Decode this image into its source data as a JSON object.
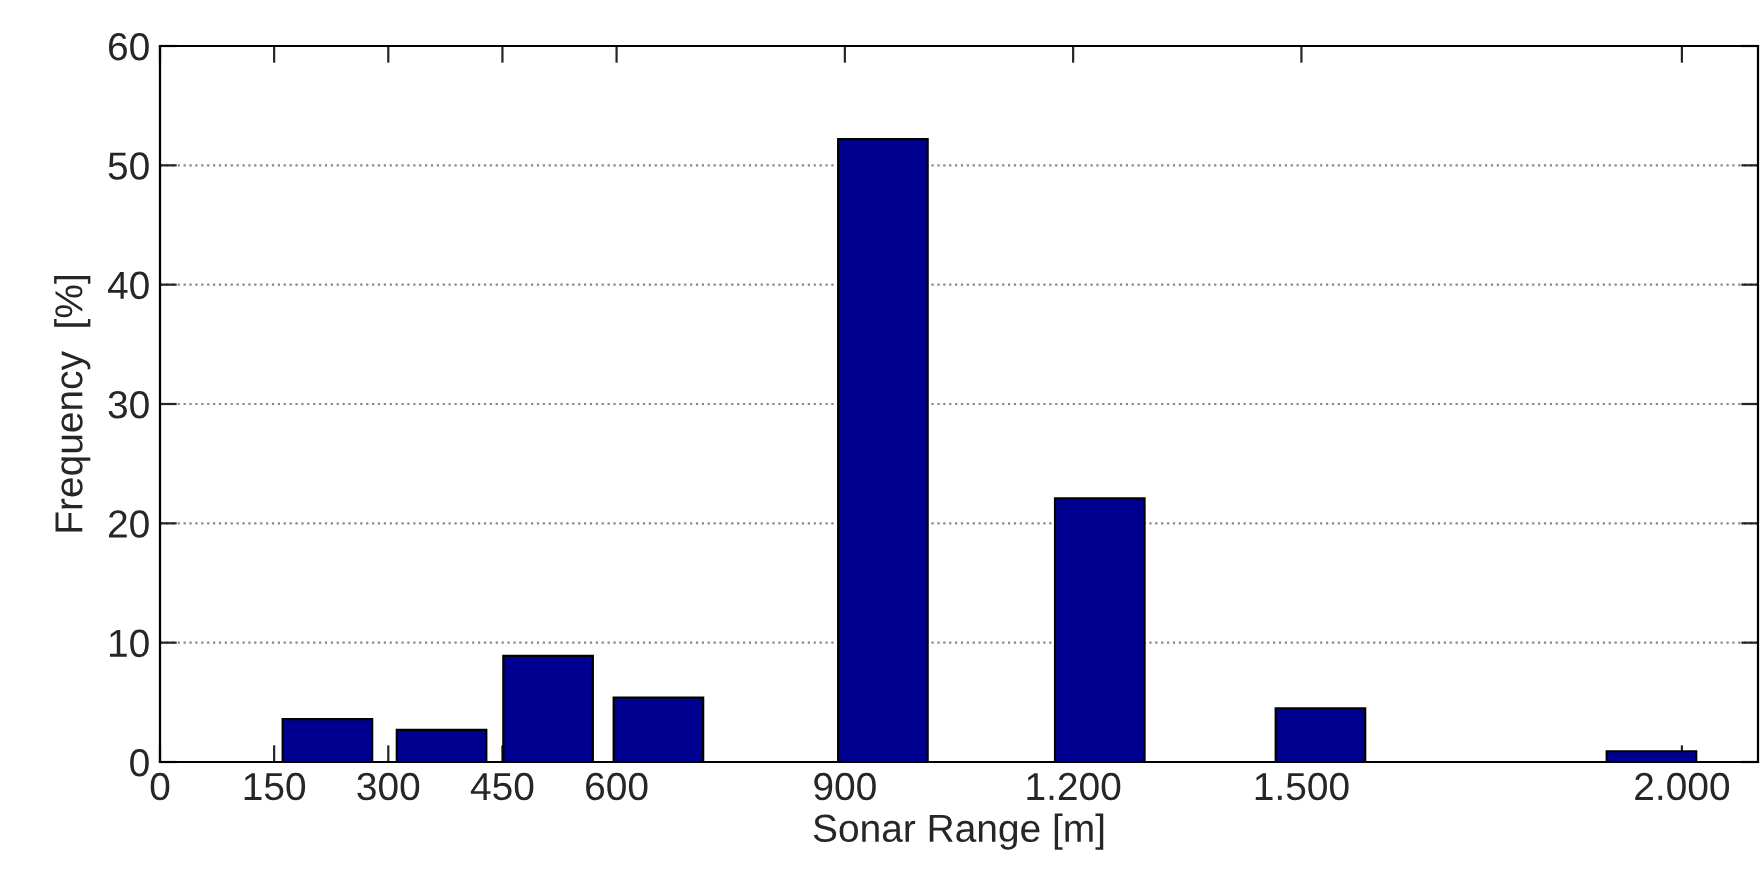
{
  "chart_data": {
    "type": "bar",
    "xlabel": "Sonar Range [m]",
    "ylabel": "Frequency  [%]",
    "x": [
      220,
      370,
      510,
      655,
      950,
      1235,
      1525,
      1960
    ],
    "values": [
      3.6,
      2.7,
      8.9,
      5.4,
      52.2,
      22.1,
      4.5,
      0.9
    ],
    "color": "#000090",
    "xlim": [
      0,
      2100
    ],
    "xticks": [
      0,
      150,
      300,
      450,
      600,
      900,
      {
        "value": 1200,
        "label": "1.200"
      },
      {
        "value": 1500,
        "label": "1.500"
      },
      {
        "value": 2000,
        "label": "2.000"
      }
    ],
    "ylim": [
      0,
      60
    ],
    "yticks": [
      0,
      10,
      20,
      30,
      40,
      50,
      60
    ],
    "grid": "y"
  }
}
